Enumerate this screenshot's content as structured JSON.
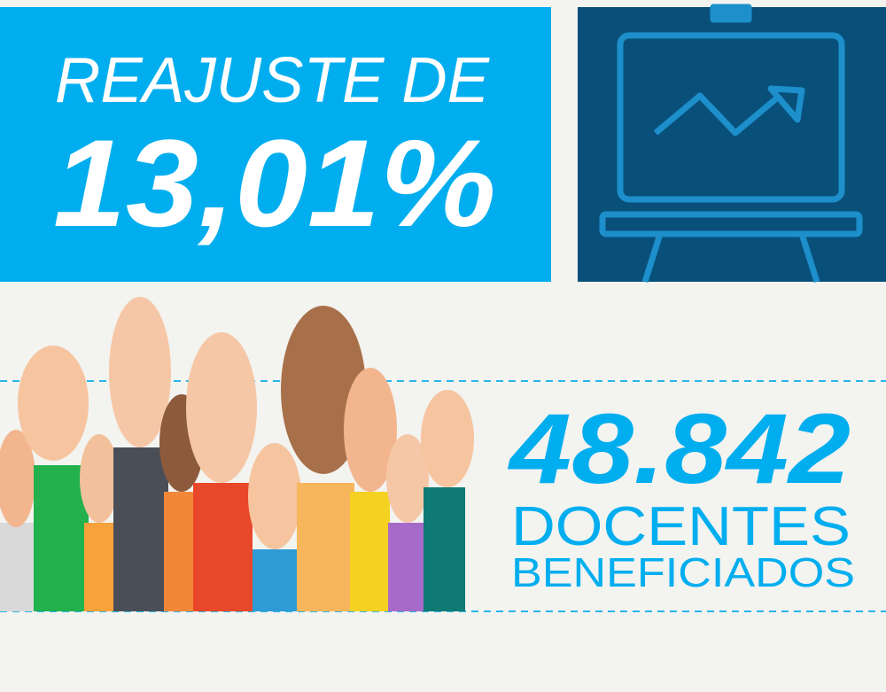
{
  "headline": {
    "top": "REAJUSTE DE",
    "value": "13,01%"
  },
  "beneficiaries": {
    "value": "48.842",
    "line1": "DOCENTES",
    "line2": "BENEFICIADOS"
  }
}
